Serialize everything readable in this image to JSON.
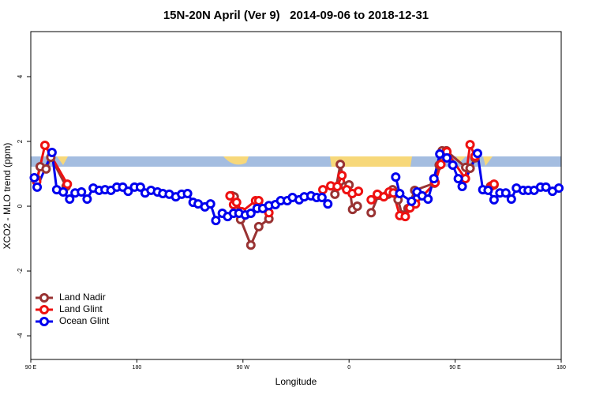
{
  "chart_data": {
    "type": "line",
    "title": "15N-20N April (Ver 9)   2014-09-06 to 2018-12-31",
    "xlabel": "Longitude",
    "ylabel": "XCO2 - MLO trend (ppm)",
    "xlim": [
      90,
      540
    ],
    "xticks": [
      {
        "value": 90,
        "label": "90 E"
      },
      {
        "value": 180,
        "label": "180"
      },
      {
        "value": 270,
        "label": "90 W"
      },
      {
        "value": 360,
        "label": "0"
      },
      {
        "value": 450,
        "label": "90 E"
      },
      {
        "value": 540,
        "label": "180"
      }
    ],
    "ylim": [
      -4.73,
      5.39
    ],
    "yticks": [
      -4,
      -2,
      0,
      2,
      4
    ],
    "legend": "bottomleft",
    "series": [
      {
        "name": "Land Nadir",
        "color": "#993333",
        "x": [
          95,
          98,
          103,
          107,
          120,
          null,
          260.6,
          262.6,
          268,
          276.7,
          283.4,
          292,
          null,
          348,
          352.6,
          356.6,
          360,
          363,
          367,
          null,
          378.8,
          385,
          393,
          397,
          401.6,
          405,
          410,
          415.7,
          432.5,
          436.5,
          439,
          442.6,
          459,
          462.7,
          466.8,
          null,
          480,
          483
        ],
        "values": [
          0.83,
          1.22,
          1.15,
          1.51,
          0.61,
          null,
          0.32,
          0.29,
          -0.41,
          -1.2,
          -0.63,
          -0.39,
          null,
          0.37,
          1.29,
          0.61,
          0.66,
          -0.1,
          0,
          null,
          -0.2,
          0.34,
          0.37,
          0.51,
          0.2,
          -0.27,
          -0.07,
          0.49,
          0.71,
          1.27,
          1.71,
          1.71,
          1.2,
          1.17,
          1.49,
          null,
          0.61,
          0.66
        ]
      },
      {
        "name": "Land Glint",
        "color": "#ee1111",
        "x": [
          95,
          102,
          121,
          null,
          259,
          262,
          264.6,
          269,
          280.7,
          283.4,
          292,
          null,
          337.8,
          344.5,
          350,
          354,
          358,
          362.7,
          368,
          null,
          378.8,
          384,
          389.5,
          394,
          397.6,
          403,
          407.7,
          411.7,
          416.4,
          433,
          437.9,
          443,
          458.7,
          462.7,
          466.8,
          null,
          480.9,
          483
        ],
        "values": [
          0.76,
          1.88,
          0.68,
          null,
          0.32,
          0.05,
          0.12,
          -0.17,
          0.17,
          0.17,
          -0.2,
          null,
          0.51,
          0.63,
          0.61,
          0.95,
          0.51,
          0.39,
          0.46,
          null,
          0.2,
          0.37,
          0.29,
          0.44,
          0.41,
          -0.29,
          -0.32,
          -0.05,
          0.07,
          0.73,
          1.29,
          1.68,
          0.85,
          1.9,
          1.54,
          null,
          0.63,
          0.68
        ]
      },
      {
        "name": "Ocean Glint",
        "color": "#0000ee",
        "x": [
          93,
          95.4,
          108,
          112,
          117.5,
          123,
          127.6,
          133,
          137.8,
          143,
          148,
          153,
          158,
          163,
          168,
          172.6,
          178,
          183,
          187,
          192,
          197.5,
          202,
          207.5,
          213,
          218,
          223,
          227.7,
          232,
          237.7,
          242.5,
          247,
          252.5,
          257,
          262,
          266.6,
          272,
          276.7,
          282,
          286.8,
          292,
          297.5,
          302,
          307.6,
          312,
          317.7,
          322,
          327.7,
          332.5,
          337,
          342,
          null,
          399.6,
          403,
          413,
          417.7,
          422,
          427,
          432,
          437,
          443,
          448,
          452.7,
          456,
          469,
          473.5,
          478,
          483,
          488,
          493,
          497.7,
          502,
          507.7,
          512,
          517,
          522.5,
          527,
          532.6,
          538
        ],
        "values": [
          0.88,
          0.59,
          1.66,
          0.51,
          0.44,
          0.22,
          0.41,
          0.44,
          0.22,
          0.56,
          0.49,
          0.51,
          0.49,
          0.59,
          0.59,
          0.46,
          0.59,
          0.59,
          0.41,
          0.49,
          0.44,
          0.39,
          0.37,
          0.29,
          0.37,
          0.39,
          0.12,
          0.07,
          -0.02,
          0.07,
          -0.44,
          -0.22,
          -0.32,
          -0.22,
          -0.22,
          -0.27,
          -0.22,
          -0.07,
          -0.07,
          0.02,
          0.05,
          0.17,
          0.17,
          0.27,
          0.2,
          0.29,
          0.32,
          0.27,
          0.27,
          0.07,
          null,
          0.9,
          0.39,
          0.15,
          0.44,
          0.32,
          0.22,
          0.85,
          1.61,
          1.49,
          1.27,
          0.85,
          0.61,
          1.63,
          0.51,
          0.49,
          0.2,
          0.41,
          0.41,
          0.22,
          0.56,
          0.49,
          0.49,
          0.49,
          0.59,
          0.59,
          0.46,
          0.56
        ]
      }
    ]
  }
}
